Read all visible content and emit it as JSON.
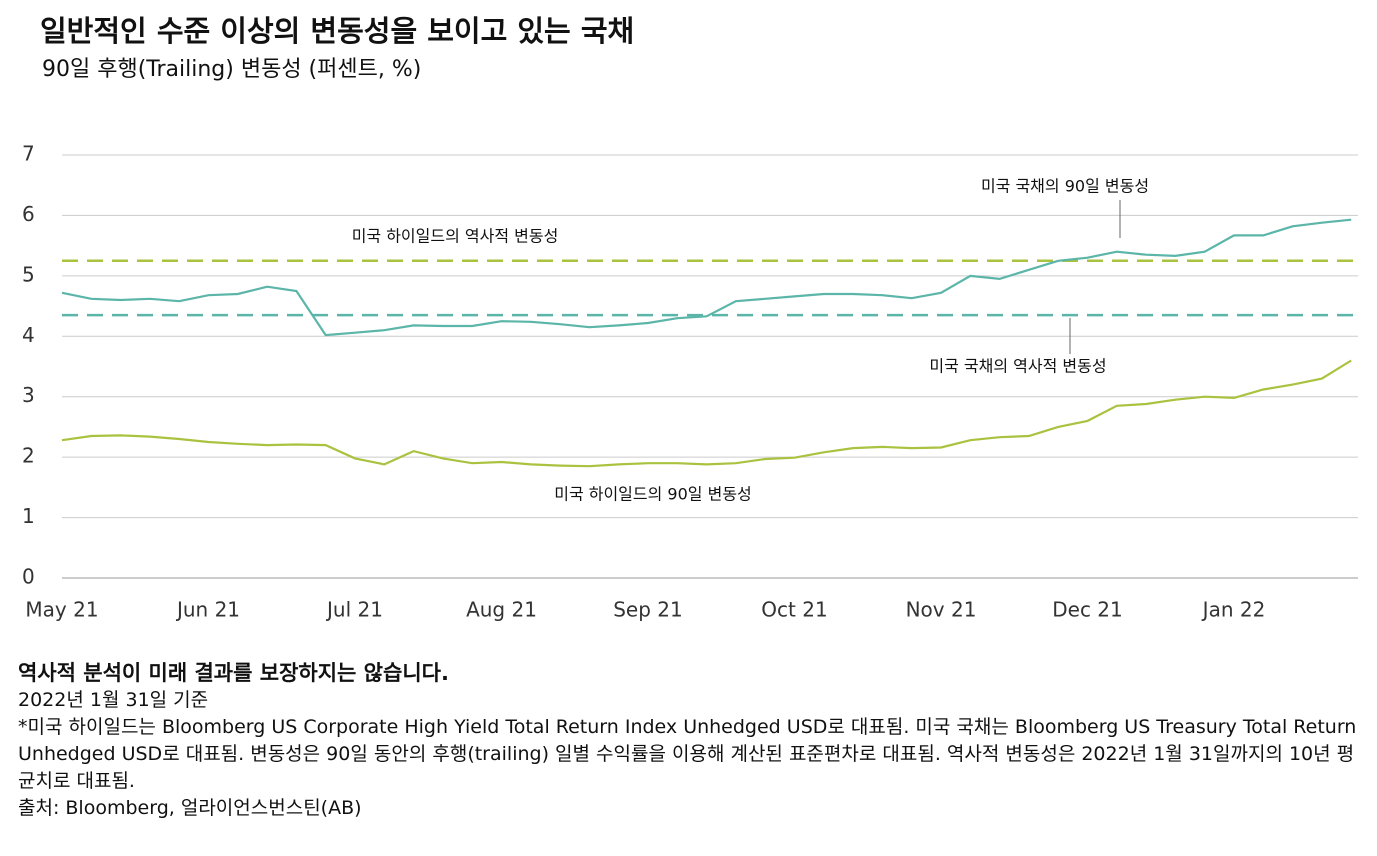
{
  "chart_data": {
    "type": "line",
    "title": "일반적인 수준 이상의 변동성을 보이고 있는 국채",
    "subtitle": "90일 후행(Trailing) 변동성 (퍼센트, %)",
    "x": [
      "May 21",
      null,
      null,
      null,
      null,
      "Jun 21",
      null,
      null,
      null,
      null,
      "Jul 21",
      null,
      null,
      null,
      null,
      "Aug 21",
      null,
      null,
      null,
      null,
      "Sep 21",
      null,
      null,
      null,
      null,
      "Oct 21",
      null,
      null,
      null,
      null,
      "Nov 21",
      null,
      null,
      null,
      null,
      "Dec 21",
      null,
      null,
      null,
      null,
      "Jan 22",
      null,
      null,
      null,
      null
    ],
    "ylim": [
      0,
      7
    ],
    "yticks": [
      0,
      1,
      2,
      3,
      4,
      5,
      6,
      7
    ],
    "grid": true,
    "series": [
      {
        "name": "미국 국채의 90일 변동성",
        "color": "#5bb5a8",
        "values": [
          4.72,
          4.62,
          4.6,
          4.62,
          4.58,
          4.68,
          4.7,
          4.82,
          4.75,
          4.02,
          4.06,
          4.1,
          4.18,
          4.17,
          4.17,
          4.25,
          4.24,
          4.2,
          4.15,
          4.18,
          4.22,
          4.3,
          4.33,
          4.58,
          4.62,
          4.66,
          4.7,
          4.7,
          4.68,
          4.63,
          4.72,
          5.0,
          4.95,
          5.1,
          5.25,
          5.3,
          5.4,
          5.35,
          5.33,
          5.4,
          5.67,
          5.67,
          5.82,
          5.88,
          5.93
        ]
      },
      {
        "name": "미국 하이일드의 90일 변동성",
        "color": "#a9c23f",
        "values": [
          2.28,
          2.35,
          2.36,
          2.34,
          2.3,
          2.25,
          2.22,
          2.2,
          2.21,
          2.2,
          1.98,
          1.88,
          2.1,
          1.98,
          1.9,
          1.92,
          1.88,
          1.86,
          1.85,
          1.88,
          1.9,
          1.9,
          1.88,
          1.9,
          1.97,
          1.99,
          2.08,
          2.15,
          2.17,
          2.15,
          2.16,
          2.28,
          2.33,
          2.35,
          2.5,
          2.6,
          2.85,
          2.88,
          2.95,
          3.0,
          2.98,
          3.12,
          3.2,
          3.3,
          3.6
        ]
      }
    ],
    "reference_lines": [
      {
        "label": "미국 하이일드의 역사적 변동성",
        "value": 5.25,
        "color": "#a9c23f"
      },
      {
        "label": "미국 국채의 역사적 변동성",
        "value": 4.35,
        "color": "#5bb5a8"
      }
    ]
  },
  "notes": [
    "역사적 분석이 미래 결과를 보장하지는 않습니다.",
    "2022년 1월 31일 기준",
    "*미국 하이일드는 Bloomberg US Corporate High Yield Total Return Index Unhedged USD로 대표됨. 미국 국채는 Bloomberg US Treasury Total Return Unhedged USD로 대표됨.  변동성은 90일 동안의 후행(trailing) 일별 수익률을 이용해 계산된 표준편차로 대표됨. 역사적 변동성은 2022년 1월 31일까지의 10년 평균치로 대표됨.",
    "출처: Bloomberg, 얼라이언스번스틴(AB)"
  ]
}
